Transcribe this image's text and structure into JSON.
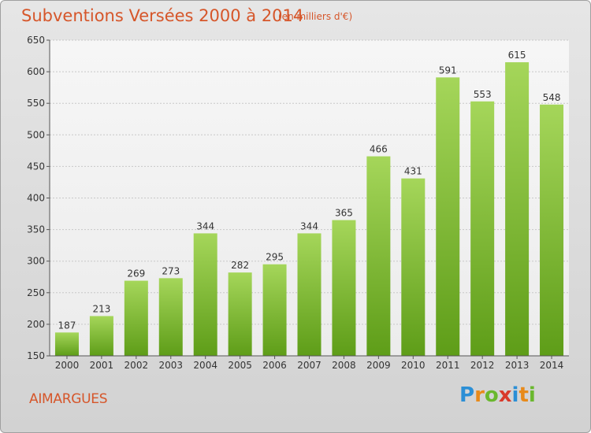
{
  "title": "Subventions Versées 2000 à 2014",
  "subtitle": "(en milliers d'€)",
  "commune": "AIMARGUES",
  "logo": {
    "letters": [
      "P",
      "r",
      "o",
      "x",
      "i",
      "t",
      "i"
    ],
    "colors": [
      "#2b8fd6",
      "#e88a1a",
      "#6ab82e",
      "#d93a2b",
      "#2b8fd6",
      "#e88a1a",
      "#6ab82e"
    ]
  },
  "colors": {
    "title": "#d6562a",
    "bar_light": "#a5d65a",
    "bar_dark": "#5e9d18",
    "grid": "#c8c8c8",
    "axis": "#555555"
  },
  "chart_data": {
    "type": "bar",
    "title": "Subventions Versées 2000 à 2014",
    "xlabel": "",
    "ylabel": "",
    "categories": [
      "2000",
      "2001",
      "2002",
      "2003",
      "2004",
      "2005",
      "2006",
      "2007",
      "2008",
      "2009",
      "2010",
      "2011",
      "2012",
      "2013",
      "2014"
    ],
    "values": [
      187,
      213,
      269,
      273,
      344,
      282,
      295,
      344,
      365,
      466,
      431,
      591,
      553,
      615,
      548
    ],
    "ylim": [
      150,
      650
    ],
    "yticks": [
      150,
      200,
      250,
      300,
      350,
      400,
      450,
      500,
      550,
      600,
      650
    ],
    "grid": true
  }
}
